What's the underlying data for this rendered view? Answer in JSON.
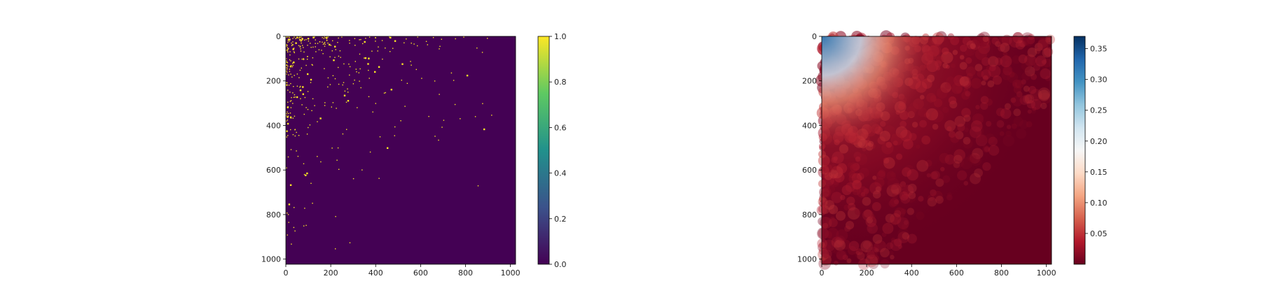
{
  "chart_data": [
    {
      "type": "heatmap",
      "title": "",
      "xlabel": "",
      "ylabel": "",
      "xlim": [
        0,
        1023
      ],
      "ylim": [
        1023,
        0
      ],
      "x_ticks": [
        "0",
        "200",
        "400",
        "600",
        "800",
        "1000"
      ],
      "y_ticks": [
        "0",
        "200",
        "400",
        "600",
        "800",
        "1000"
      ],
      "colormap": "viridis",
      "colorbar": {
        "range": [
          0.0,
          1.0
        ],
        "ticks": [
          "0.0",
          "0.2",
          "0.4",
          "0.6",
          "0.8",
          "1.0"
        ],
        "colors": [
          "#440154",
          "#3b528b",
          "#21918c",
          "#5ec962",
          "#fde725"
        ]
      },
      "background_value": 0.0,
      "description_values": "sparse binary matrix, scattered 1-valued points densest toward top-left, background 0"
    },
    {
      "type": "heatmap",
      "title": "",
      "xlabel": "",
      "ylabel": "",
      "xlim": [
        0,
        1023
      ],
      "ylim": [
        1023,
        0
      ],
      "x_ticks": [
        "0",
        "200",
        "400",
        "600",
        "800",
        "1000"
      ],
      "y_ticks": [
        "0",
        "200",
        "400",
        "600",
        "800",
        "1000"
      ],
      "colormap": "RdBu",
      "colorbar": {
        "range": [
          0.0,
          0.37
        ],
        "ticks": [
          "0.05",
          "0.10",
          "0.15",
          "0.20",
          "0.25",
          "0.30",
          "0.35"
        ],
        "colors": [
          "#67001f",
          "#b2182b",
          "#d6604d",
          "#f4a582",
          "#fddbc7",
          "#f7f7f7",
          "#d1e5f0",
          "#92c5de",
          "#4393c3",
          "#2166ac",
          "#053061"
        ]
      },
      "high_value_region": "top-left corner",
      "low_value_region": "bottom-right"
    }
  ]
}
